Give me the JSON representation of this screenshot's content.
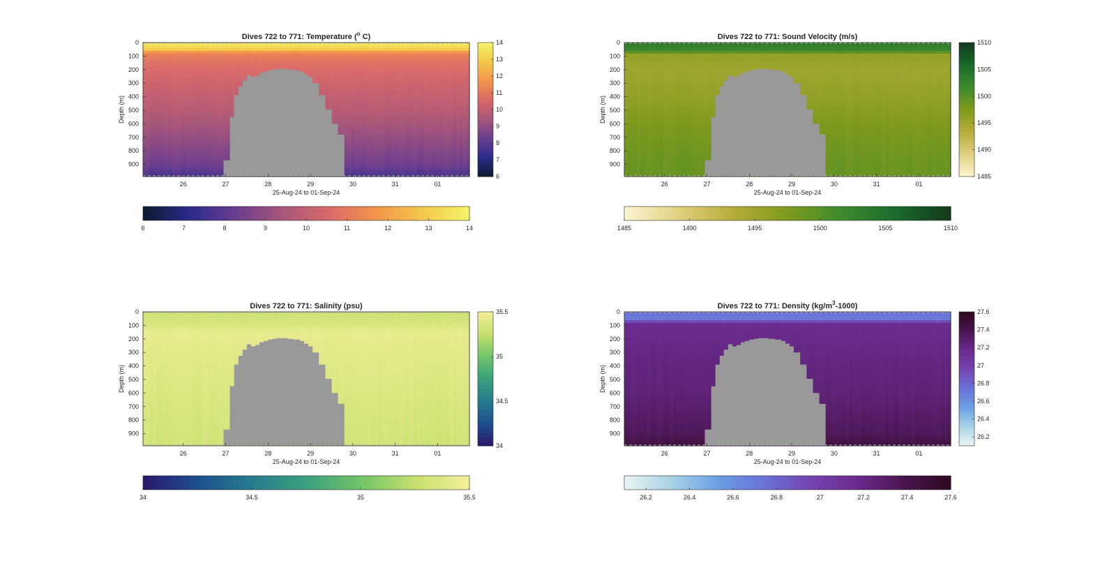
{
  "chart_data": [
    {
      "type": "heatmap",
      "title": "Dives 722 to 771: Temperature (° C)",
      "title_main": "Dives 722 to 771: Temperature (",
      "title_sup": "o",
      "title_end": " C)",
      "xlabel": "25-Aug-24 to 01-Sep-24",
      "ylabel": "Depth (m)",
      "xticks": [
        "26",
        "27",
        "28",
        "29",
        "30",
        "31",
        "01"
      ],
      "yticks": [
        "0",
        "100",
        "200",
        "300",
        "400",
        "500",
        "600",
        "700",
        "800",
        "900"
      ],
      "ylim": [
        0,
        990
      ],
      "colorbar_ticks": [
        "6",
        "7",
        "8",
        "9",
        "10",
        "11",
        "12",
        "13",
        "14"
      ],
      "clim": [
        6,
        14
      ],
      "colormap": [
        "#0a1a2e",
        "#2b2b8c",
        "#6b3e8f",
        "#a8567a",
        "#d96a6a",
        "#f3944a",
        "#f3c84a",
        "#f5f46a"
      ],
      "profile": [
        [
          0,
          13.8
        ],
        [
          50,
          13.0
        ],
        [
          80,
          11.3
        ],
        [
          150,
          10.8
        ],
        [
          300,
          10.3
        ],
        [
          500,
          9.8
        ],
        [
          700,
          9.1
        ],
        [
          900,
          8.4
        ],
        [
          990,
          7.7
        ]
      ],
      "mask_color": "#999999",
      "shading": "flat"
    },
    {
      "type": "heatmap",
      "title": "Dives 722 to 771: Sound Velocity (m/s)",
      "xlabel": "25-Aug-24 to 01-Sep-24",
      "ylabel": "Depth (m)",
      "xticks": [
        "26",
        "27",
        "28",
        "29",
        "30",
        "31",
        "01"
      ],
      "yticks": [
        "0",
        "100",
        "200",
        "300",
        "400",
        "500",
        "600",
        "700",
        "800",
        "900"
      ],
      "ylim": [
        0,
        990
      ],
      "colorbar_ticks": [
        "1485",
        "1490",
        "1495",
        "1500",
        "1505",
        "1510"
      ],
      "clim": [
        1485,
        1510
      ],
      "colormap": [
        "#fbf5d0",
        "#e0d080",
        "#b5ad3a",
        "#7f9a1c",
        "#3e8a2e",
        "#1a6a2c",
        "#123a1c"
      ],
      "profile": [
        [
          0,
          1503.5
        ],
        [
          60,
          1502.0
        ],
        [
          90,
          1496.0
        ],
        [
          200,
          1495.0
        ],
        [
          400,
          1496.0
        ],
        [
          600,
          1497.5
        ],
        [
          800,
          1498.5
        ],
        [
          990,
          1499.0
        ]
      ],
      "mask_color": "#999999",
      "shading": "flat"
    },
    {
      "type": "heatmap",
      "title": "Dives 722 to 771: Salinity (psu)",
      "xlabel": "25-Aug-24 to 01-Sep-24",
      "ylabel": "Depth (m)",
      "xticks": [
        "26",
        "27",
        "28",
        "29",
        "30",
        "31",
        "01"
      ],
      "yticks": [
        "0",
        "100",
        "200",
        "300",
        "400",
        "500",
        "600",
        "700",
        "800",
        "900"
      ],
      "ylim": [
        0,
        990
      ],
      "colorbar_ticks": [
        "34",
        "34.5",
        "35",
        "35.5"
      ],
      "clim": [
        34,
        35.5
      ],
      "colormap": [
        "#2a186c",
        "#1d4f8f",
        "#277c8e",
        "#3aa07d",
        "#72c46a",
        "#c5e06c",
        "#f5ef9c"
      ],
      "profile": [
        [
          0,
          35.29
        ],
        [
          80,
          35.33
        ],
        [
          150,
          35.43
        ],
        [
          400,
          35.39
        ],
        [
          700,
          35.35
        ],
        [
          990,
          35.31
        ]
      ],
      "mask_color": "#999999",
      "shading": "flat"
    },
    {
      "type": "heatmap",
      "title": "Dives 722 to 771: Density (kg/m³-1000)",
      "title_main": "Dives 722 to 771: Density (kg/m",
      "title_sup": "3",
      "title_end": "-1000)",
      "xlabel": "25-Aug-24 to 01-Sep-24",
      "ylabel": "Depth (m)",
      "xticks": [
        "26",
        "27",
        "28",
        "29",
        "30",
        "31",
        "01"
      ],
      "yticks": [
        "0",
        "100",
        "200",
        "300",
        "400",
        "500",
        "600",
        "700",
        "800",
        "900"
      ],
      "ylim": [
        0,
        990
      ],
      "colorbar_ticks": [
        "26.2",
        "26.4",
        "26.6",
        "26.8",
        "27",
        "27.2",
        "27.4",
        "27.6"
      ],
      "clim": [
        26.1,
        27.6
      ],
      "colormap": [
        "#e9f4f2",
        "#a9d3e6",
        "#6b9fe3",
        "#6a72d8",
        "#7443b0",
        "#6a2a8c",
        "#4a1550",
        "#2e0a1e"
      ],
      "profile": [
        [
          0,
          26.75
        ],
        [
          55,
          26.7
        ],
        [
          90,
          27.15
        ],
        [
          300,
          27.2
        ],
        [
          600,
          27.25
        ],
        [
          900,
          27.35
        ],
        [
          990,
          27.45
        ]
      ],
      "mask_color": "#999999",
      "shading": "flat"
    }
  ]
}
